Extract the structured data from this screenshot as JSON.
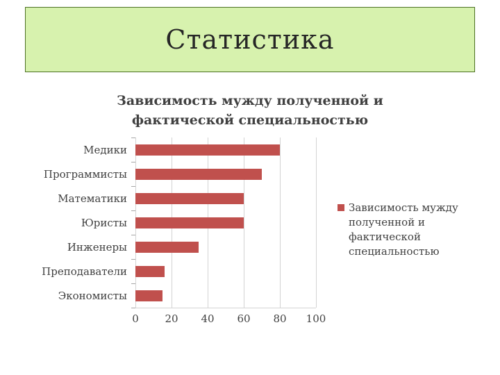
{
  "slide": {
    "title": "Статистика"
  },
  "chart_data": {
    "type": "bar",
    "orientation": "horizontal",
    "title": "Зависимость мужду полученной и фактической специальностью",
    "title_lines": [
      "Зависимость мужду полученной и",
      "фактической специальностью"
    ],
    "categories": [
      "Медики",
      "Программисты",
      "Математики",
      "Юристы",
      "Инженеры",
      "Преподаватели",
      "Экономисты"
    ],
    "values": [
      80,
      70,
      60,
      60,
      35,
      16,
      15
    ],
    "x_ticks": [
      0,
      20,
      40,
      60,
      80,
      100
    ],
    "xlim": [
      0,
      100
    ],
    "grid": true,
    "legend_position": "right",
    "legend_lines": [
      "Зависимость мужду",
      "полученной и",
      "фактической",
      "специальностью"
    ]
  },
  "colors": {
    "title_box_bg": "#D7F2AE",
    "title_box_border": "#4C7022",
    "bar": "#C0504D",
    "text": "#404040",
    "gridline": "#D3D3D3"
  }
}
